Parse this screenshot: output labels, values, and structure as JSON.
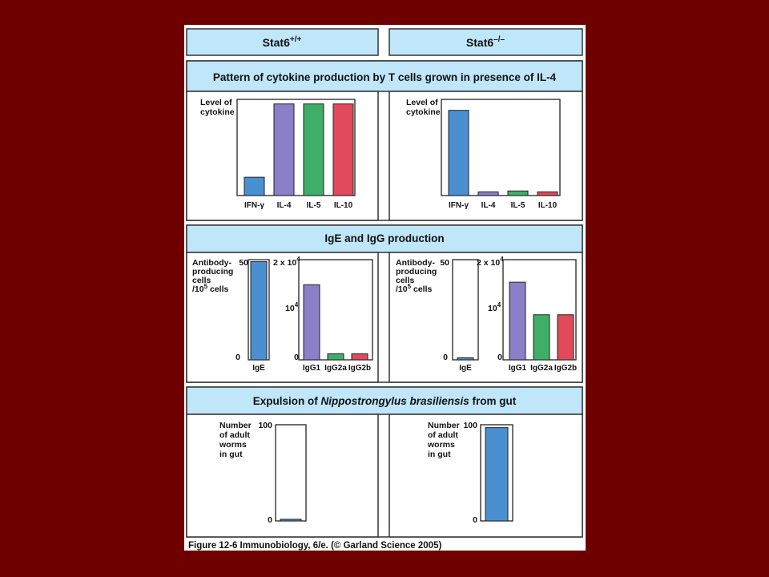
{
  "header": {
    "left_title": "Stat6",
    "left_sup": "+/+",
    "right_title": "Stat6",
    "right_sup": "–/–"
  },
  "sections": {
    "cytokine_title": "Pattern of cytokine production by T cells grown in presence of IL-4",
    "igeigg_title": "IgE and IgG production",
    "expulsion_title_pre": "Expulsion of ",
    "expulsion_title_em": "Nippostrongylus brasiliensis",
    "expulsion_title_post": " from gut"
  },
  "caption": "Figure 12-6  Immunobiology, 6/e. (© Garland Science 2005)",
  "labels": {
    "cytokine_y": [
      "Level of",
      "cytokine"
    ],
    "antibody_y_left": [
      "Antibody-",
      "producing",
      "cells"
    ],
    "antibody_y_right": [
      "Antibody-",
      "producing",
      "cells"
    ],
    "per_cells_a": "/10",
    "per_cells_sup": "5",
    "per_cells_b": " cells",
    "worms_y": [
      "Number",
      "of adult",
      "worms",
      "in gut"
    ],
    "ige_top": "50",
    "igg_top_a": "2 x 10",
    "igg_top_sup": "4",
    "igg_mid_a": "10",
    "igg_mid_sup": "4",
    "zero": "0",
    "worms_top": "100"
  },
  "colors": {
    "blue": "#4a90d0",
    "purple": "#8a7fc8",
    "green": "#3fae68",
    "red": "#e04a5a",
    "header_bg": "#bfe6f9",
    "panel_bg": "#ffffff"
  },
  "chart_data": [
    {
      "id": "cyto-wt",
      "type": "bar",
      "ylabel": "Level of cytokine",
      "categories": [
        "IFN-γ",
        "IL-4",
        "IL-5",
        "IL-10"
      ],
      "values": [
        0.2,
        1.0,
        1.0,
        1.0
      ],
      "ylim": [
        0,
        1.05
      ]
    },
    {
      "id": "cyto-ko",
      "type": "bar",
      "ylabel": "Level of cytokine",
      "categories": [
        "IFN-γ",
        "IL-4",
        "IL-5",
        "IL-10"
      ],
      "values": [
        0.93,
        0.04,
        0.05,
        0.04
      ],
      "ylim": [
        0,
        1.05
      ]
    },
    {
      "id": "ige-wt",
      "type": "bar",
      "ylabel": "Antibody-producing cells /10^5 cells",
      "categories": [
        "IgE"
      ],
      "values": [
        49
      ],
      "ylim": [
        0,
        50
      ]
    },
    {
      "id": "igg-wt",
      "type": "bar",
      "categories": [
        "IgG1",
        "IgG2a",
        "IgG2b"
      ],
      "values": [
        15000,
        1200,
        1200
      ],
      "ylim": [
        0,
        20000
      ]
    },
    {
      "id": "ige-ko",
      "type": "bar",
      "ylabel": "Antibody-producing cells /10^5 cells",
      "categories": [
        "IgE"
      ],
      "values": [
        1
      ],
      "ylim": [
        0,
        50
      ]
    },
    {
      "id": "igg-ko",
      "type": "bar",
      "categories": [
        "IgG1",
        "IgG2a",
        "IgG2b"
      ],
      "values": [
        15500,
        9000,
        9000
      ],
      "ylim": [
        0,
        20000
      ]
    },
    {
      "id": "worms-wt",
      "type": "bar",
      "ylabel": "Number of adult worms in gut",
      "categories": [
        ""
      ],
      "values": [
        1
      ],
      "ylim": [
        0,
        100
      ]
    },
    {
      "id": "worms-ko",
      "type": "bar",
      "ylabel": "Number of adult worms in gut",
      "categories": [
        ""
      ],
      "values": [
        97
      ],
      "ylim": [
        0,
        100
      ]
    }
  ]
}
